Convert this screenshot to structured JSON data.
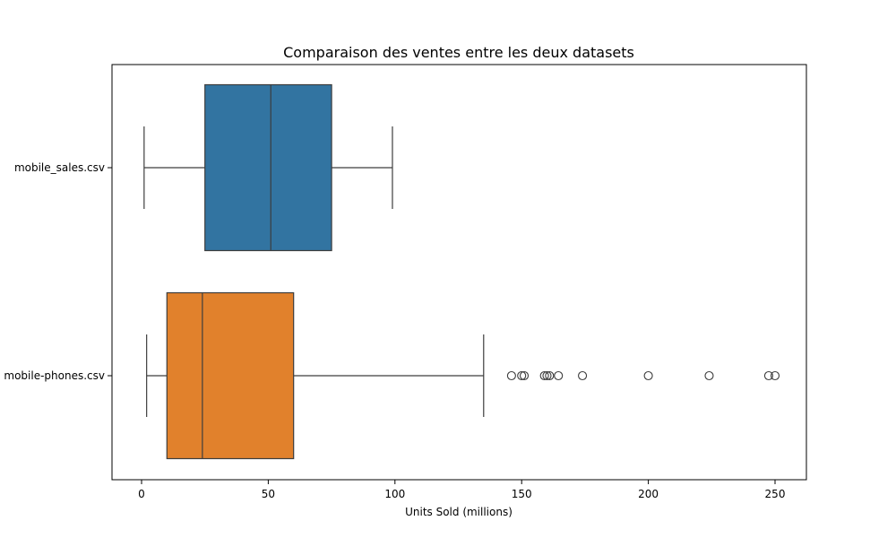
{
  "chart_data": {
    "type": "boxplot",
    "orientation": "horizontal",
    "title": "Comparaison des ventes entre les deux datasets",
    "xlabel": "Units Sold (millions)",
    "ylabel": "",
    "xlim": [
      -11,
      262
    ],
    "xticks": [
      0,
      50,
      100,
      150,
      200,
      250
    ],
    "categories": [
      "mobile_sales.csv",
      "mobile-phones.csv"
    ],
    "series": [
      {
        "name": "mobile_sales.csv",
        "color": "#3274a1",
        "whisker_low": 1,
        "q1": 25,
        "median": 51,
        "q3": 75,
        "whisker_high": 99,
        "outliers": []
      },
      {
        "name": "mobile-phones.csv",
        "color": "#e1812c",
        "whisker_low": 2,
        "q1": 10,
        "median": 24,
        "q3": 60,
        "whisker_high": 135,
        "outliers": [
          146,
          150,
          151,
          159,
          160,
          161,
          164.5,
          174,
          200,
          224,
          247.5,
          250
        ]
      }
    ]
  }
}
